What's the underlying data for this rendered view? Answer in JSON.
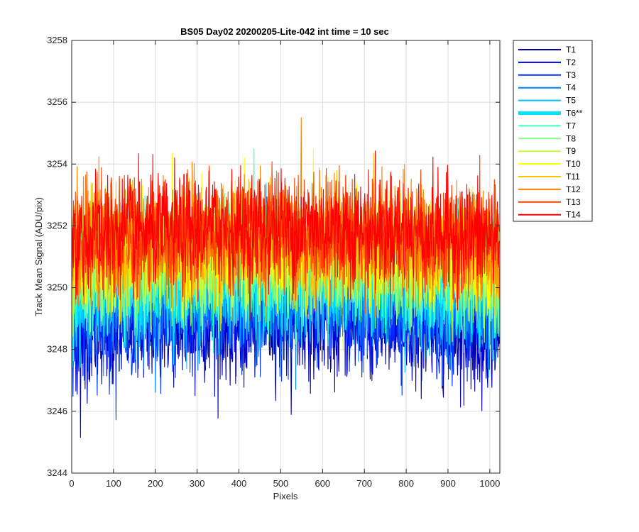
{
  "chart_data": {
    "type": "line",
    "title": "BS05 Day02 20200205-Lite-042 int time = 10 sec",
    "xlabel": "Pixels",
    "ylabel": "Track Mean Signal (ADU/pix)",
    "xlim": [
      0,
      1024
    ],
    "ylim": [
      3244,
      3258
    ],
    "xticks": [
      0,
      100,
      200,
      300,
      400,
      500,
      600,
      700,
      800,
      900,
      1000
    ],
    "yticks": [
      3244,
      3246,
      3248,
      3250,
      3252,
      3254,
      3256,
      3258
    ],
    "grid": true,
    "legend_position": "outside-top-right",
    "n_points": 1024,
    "series": [
      {
        "name": "T1",
        "color": "#0000aa",
        "mean": 3248.6,
        "highlight": false
      },
      {
        "name": "T2",
        "color": "#0000dd",
        "mean": 3248.8,
        "highlight": false
      },
      {
        "name": "T3",
        "color": "#0033ff",
        "mean": 3249.0,
        "highlight": false
      },
      {
        "name": "T4",
        "color": "#0080ff",
        "mean": 3249.4,
        "highlight": false
      },
      {
        "name": "T5",
        "color": "#00c0ff",
        "mean": 3249.8,
        "highlight": false
      },
      {
        "name": "T6**",
        "color": "#00e5ff",
        "mean": 3250.1,
        "highlight": true
      },
      {
        "name": "T7",
        "color": "#40ffc0",
        "mean": 3250.3,
        "highlight": false
      },
      {
        "name": "T8",
        "color": "#80ff80",
        "mean": 3250.5,
        "highlight": false
      },
      {
        "name": "T9",
        "color": "#c0ff40",
        "mean": 3250.7,
        "highlight": false
      },
      {
        "name": "T10",
        "color": "#ffff00",
        "mean": 3250.9,
        "highlight": false
      },
      {
        "name": "T11",
        "color": "#ffc000",
        "mean": 3251.1,
        "highlight": false
      },
      {
        "name": "T12",
        "color": "#ff8000",
        "mean": 3251.3,
        "highlight": false
      },
      {
        "name": "T13",
        "color": "#ff4000",
        "mean": 3251.5,
        "highlight": false
      },
      {
        "name": "T14",
        "color": "#ff0000",
        "mean": 3251.6,
        "highlight": false
      }
    ]
  }
}
